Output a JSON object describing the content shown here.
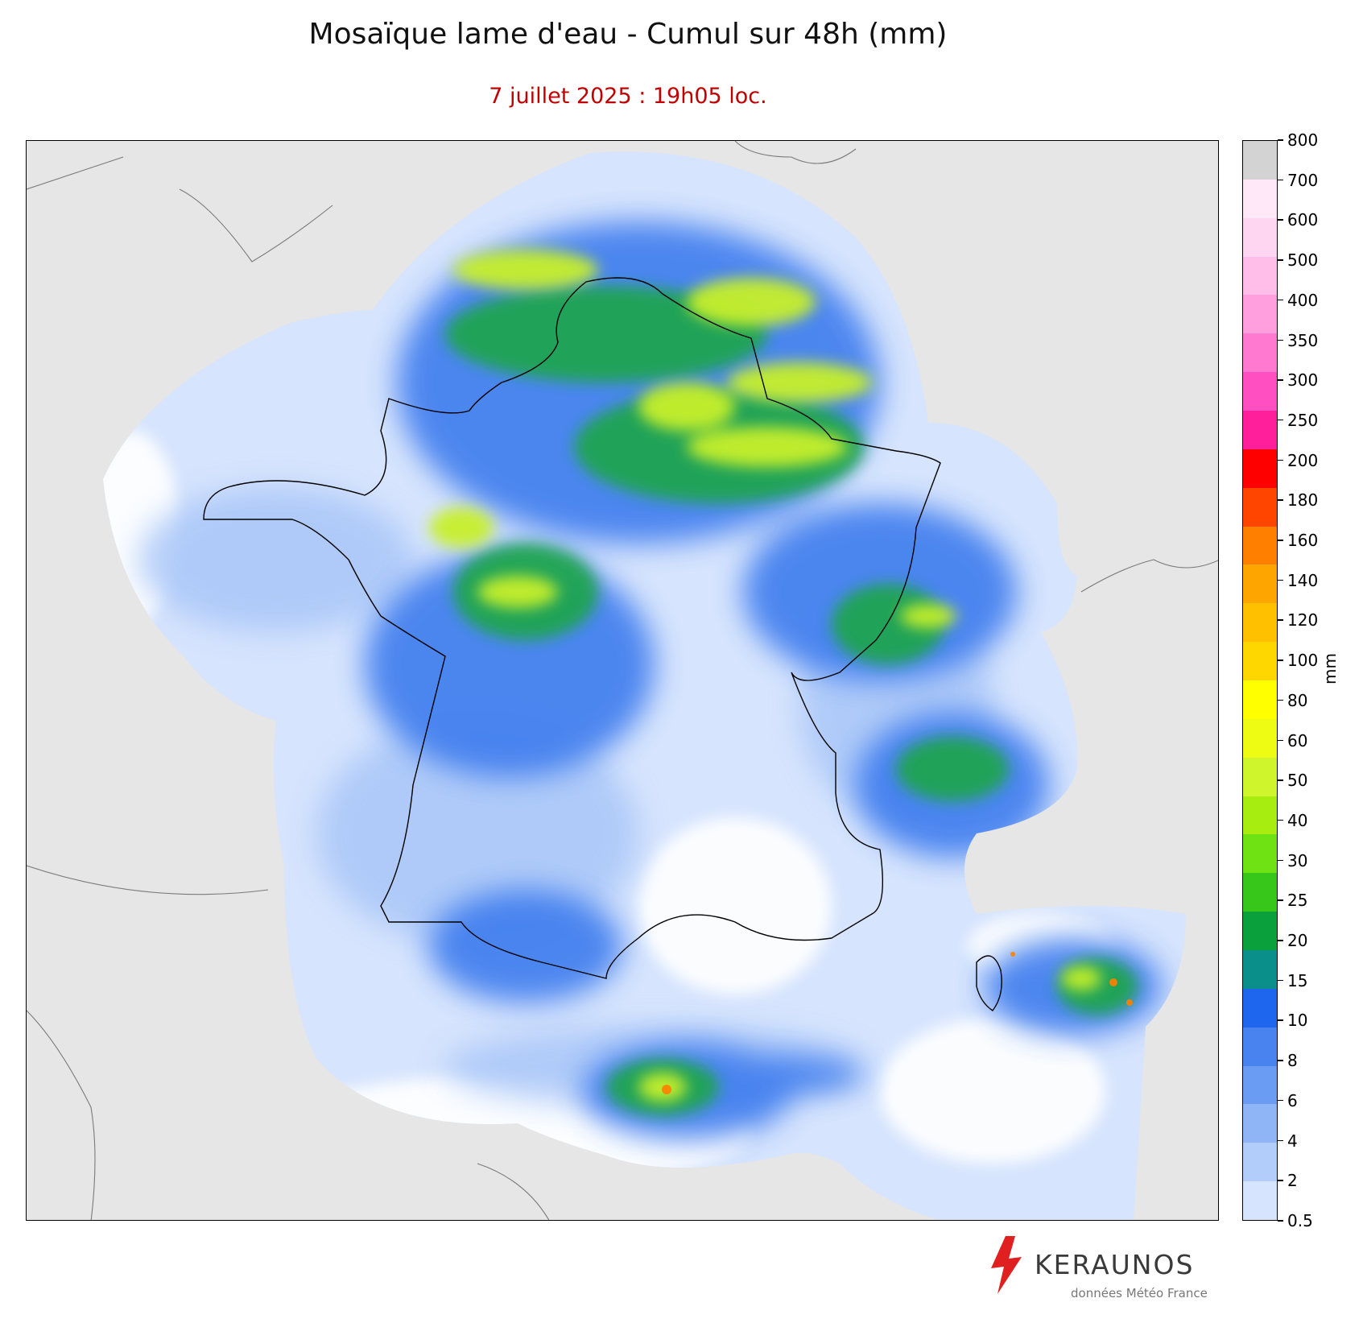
{
  "title": "Mosaïque lame d'eau - Cumul sur 48h (mm)",
  "subtitle": "7 juillet 2025 : 19h05 loc.",
  "colorbar": {
    "unit": "mm",
    "ticks": [
      "0.5",
      "2",
      "4",
      "6",
      "8",
      "10",
      "15",
      "20",
      "25",
      "30",
      "40",
      "50",
      "60",
      "80",
      "100",
      "120",
      "140",
      "160",
      "180",
      "200",
      "250",
      "300",
      "350",
      "400",
      "500",
      "600",
      "700",
      "800"
    ],
    "colors": [
      "#d6e4fd",
      "#b3cdfa",
      "#8fb5f7",
      "#6b9cf3",
      "#4883ef",
      "#1f66ee",
      "#0a8f8a",
      "#0aa13c",
      "#37c71a",
      "#6fe214",
      "#a8ed10",
      "#cff52c",
      "#eefb12",
      "#ffff00",
      "#ffd700",
      "#ffc000",
      "#ffa500",
      "#ff7f00",
      "#ff4500",
      "#ff0000",
      "#ff1f9a",
      "#ff4fc0",
      "#ff79d0",
      "#ff9fde",
      "#ffbde9",
      "#ffd6f1",
      "#ffe8f8",
      "#d3d3d3"
    ]
  },
  "logo": {
    "name": "KERAUNOS",
    "credit": "données Météo France"
  },
  "colors": {
    "land_background": "#e6e6e6",
    "title": "#111111",
    "subtitle": "#c00000"
  }
}
